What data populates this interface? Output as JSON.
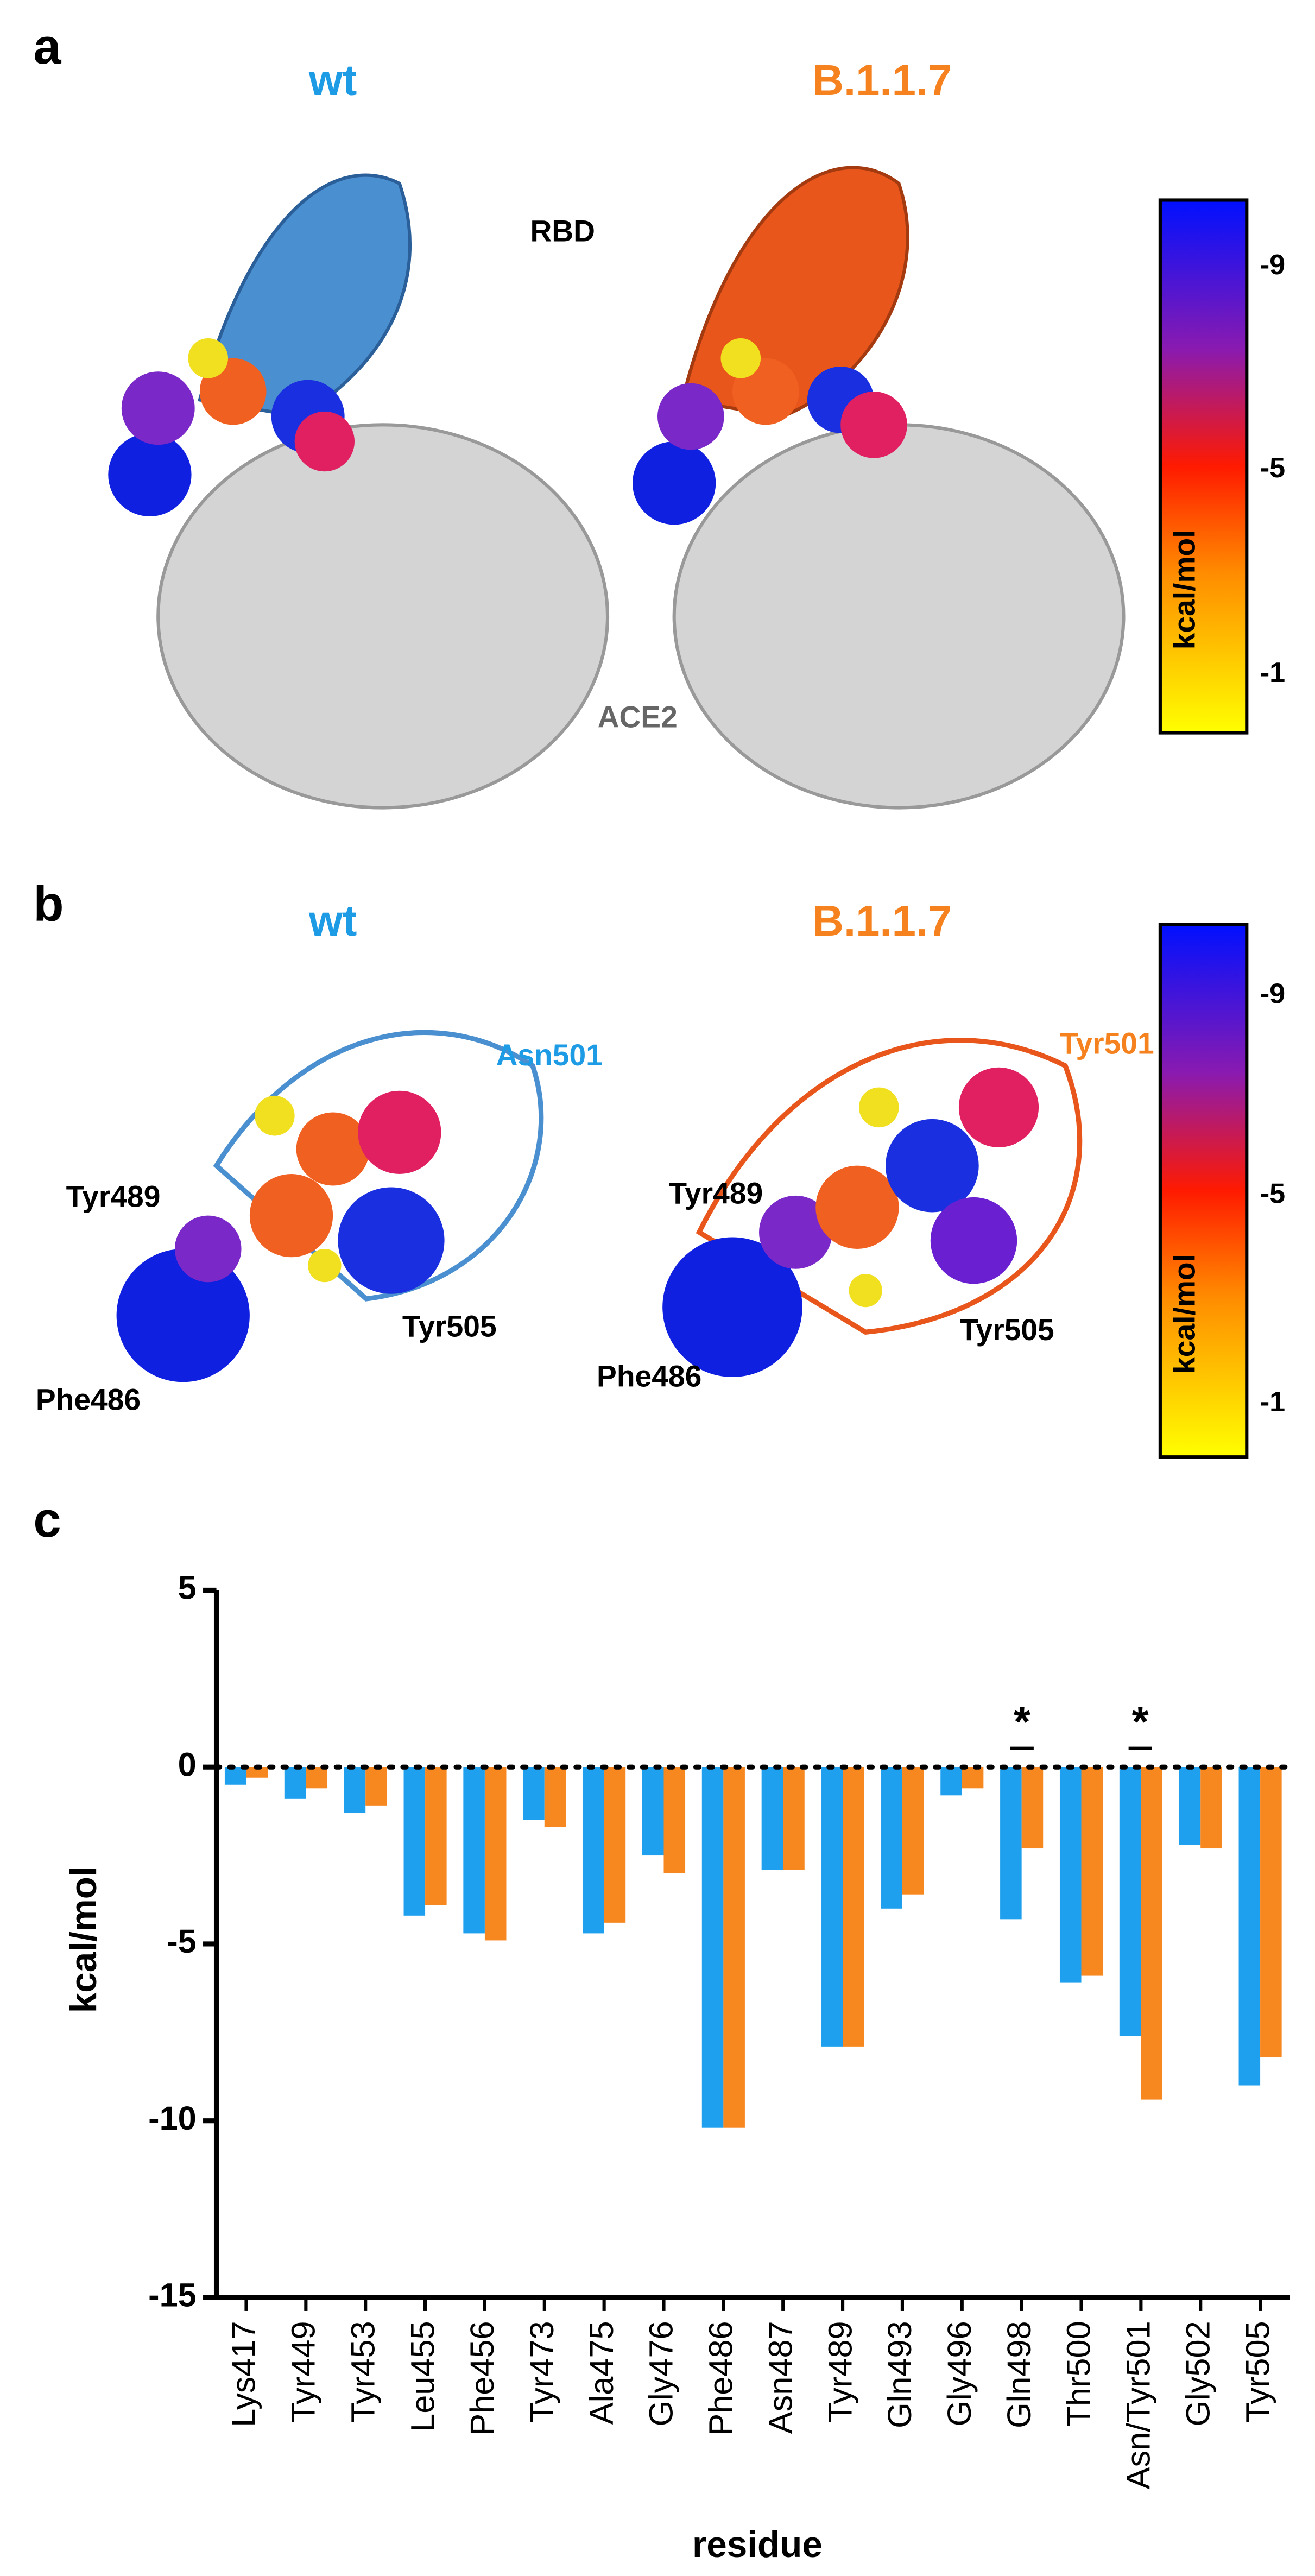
{
  "panel_a": {
    "letter": "a",
    "left_title": "wt",
    "right_title": "B.1.1.7",
    "rbd_label": "RBD",
    "ace2_label": "ACE2",
    "colorbar": {
      "ticks": [
        "-9",
        "-5",
        "-1"
      ],
      "label": "kcal/mol"
    }
  },
  "panel_b": {
    "letter": "b",
    "left_title": "wt",
    "right_title": "B.1.1.7",
    "left_labels": [
      "Asn501",
      "Tyr489",
      "Tyr505",
      "Phe486"
    ],
    "right_labels": [
      "Tyr501",
      "Tyr489",
      "Tyr505",
      "Phe486"
    ],
    "colorbar": {
      "ticks": [
        "-9",
        "-5",
        "-1"
      ],
      "label": "kcal/mol"
    }
  },
  "chart_data": {
    "type": "bar",
    "letter": "c",
    "x_label": "residue",
    "y_label": "kcal/mol",
    "categories": [
      "Lys417",
      "Tyr449",
      "Tyr453",
      "Leu455",
      "Phe456",
      "Tyr473",
      "Ala475",
      "Gly476",
      "Phe486",
      "Asn487",
      "Tyr489",
      "Gln493",
      "Gly496",
      "Gln498",
      "Thr500",
      "Asn/Tyr501",
      "Gly502",
      "Tyr505"
    ],
    "series": [
      {
        "color": "#1ea0ef",
        "values": [
          -0.5,
          -0.9,
          -1.3,
          -4.2,
          -4.7,
          -1.5,
          -4.7,
          -2.5,
          -10.2,
          -2.9,
          -7.9,
          -4.0,
          -0.8,
          -4.3,
          -6.1,
          -7.6,
          -2.2,
          -9.0
        ]
      },
      {
        "color": "#f7871f",
        "values": [
          -0.3,
          -0.6,
          -1.1,
          -3.9,
          -4.9,
          -1.7,
          -4.4,
          -3.0,
          -10.2,
          -2.9,
          -7.9,
          -3.6,
          -0.6,
          -2.3,
          -5.9,
          -9.4,
          -2.3,
          -8.2
        ]
      }
    ],
    "annotations": [
      "*",
      "*"
    ],
    "ylim": [
      -15,
      5
    ],
    "yticks": [
      5,
      0,
      -5,
      -10,
      -15
    ]
  }
}
